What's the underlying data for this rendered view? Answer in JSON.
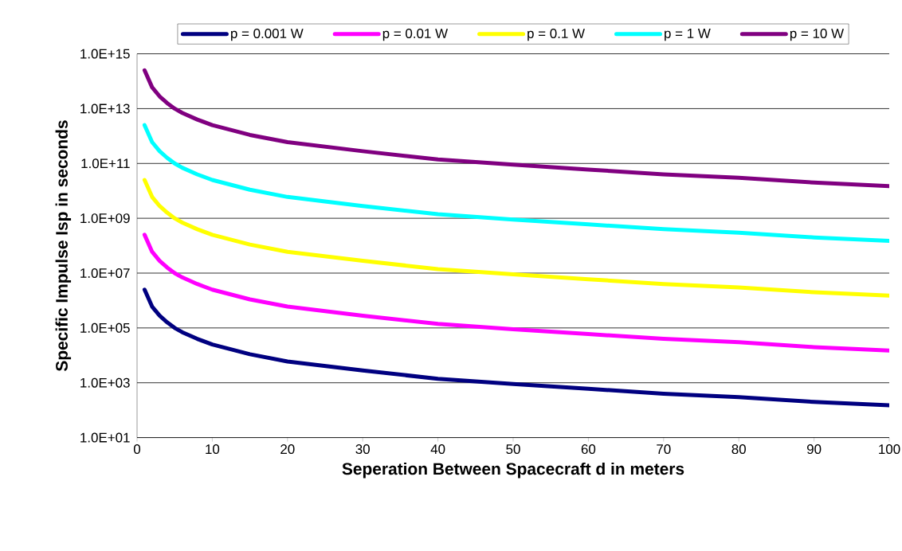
{
  "chart_data": {
    "type": "line",
    "xlabel": "Seperation Between Spacecraft d in meters",
    "ylabel": "Specific Impulse Isp in seconds",
    "x": [
      1,
      2,
      3,
      4,
      5,
      6,
      8,
      10,
      15,
      20,
      30,
      40,
      50,
      60,
      70,
      80,
      90,
      100
    ],
    "series": [
      {
        "name": "p = 0.001 W",
        "color": "#000080",
        "values": [
          2500000,
          600000,
          280000,
          160000,
          100000,
          70000,
          40000,
          25000,
          11000,
          6000,
          2800,
          1400,
          900,
          600,
          400,
          300,
          200,
          150
        ]
      },
      {
        "name": "p = 0.01 W",
        "color": "#ff00ff",
        "values": [
          250000000,
          60000000,
          28000000,
          16000000,
          10000000,
          7000000,
          4000000,
          2500000,
          1100000,
          600000,
          280000,
          140000,
          90000,
          60000,
          40000,
          30000,
          20000,
          15000
        ]
      },
      {
        "name": "p = 0.1 W",
        "color": "#ffff00",
        "values": [
          25000000000,
          6000000000,
          2800000000,
          1600000000,
          1000000000,
          700000000,
          400000000,
          250000000,
          110000000,
          60000000,
          28000000,
          14000000,
          9000000,
          6000000,
          4000000,
          3000000,
          2000000,
          1500000
        ]
      },
      {
        "name": "p = 1 W",
        "color": "#00ffff",
        "values": [
          2500000000000,
          600000000000,
          280000000000,
          160000000000,
          100000000000,
          70000000000,
          40000000000,
          25000000000,
          11000000000,
          6000000000,
          2800000000,
          1400000000,
          900000000,
          600000000,
          400000000,
          300000000,
          200000000,
          150000000
        ]
      },
      {
        "name": "p = 10 W",
        "color": "#800080",
        "values": [
          250000000000000,
          60000000000000,
          28000000000000,
          16000000000000,
          10000000000000,
          7000000000000,
          4000000000000,
          2500000000000,
          1100000000000,
          600000000000,
          280000000000,
          140000000000,
          90000000000,
          60000000000,
          40000000000,
          30000000000,
          20000000000,
          15000000000
        ]
      }
    ],
    "xlim": [
      0,
      100
    ],
    "xticks": [
      0,
      10,
      20,
      30,
      40,
      50,
      60,
      70,
      80,
      90,
      100
    ],
    "ylim": [
      10,
      1000000000000000
    ],
    "log": "y",
    "yticks": [
      {
        "value": 10,
        "label": "1.0E+01"
      },
      {
        "value": 1000,
        "label": "1.0E+03"
      },
      {
        "value": 100000,
        "label": "1.0E+05"
      },
      {
        "value": 10000000,
        "label": "1.0E+07"
      },
      {
        "value": 1000000000,
        "label": "1.0E+09"
      },
      {
        "value": 100000000000,
        "label": "1.0E+11"
      },
      {
        "value": 10000000000000,
        "label": "1.0E+13"
      },
      {
        "value": 1000000000000000,
        "label": "1.0E+15"
      }
    ],
    "grid": "y",
    "legend": "top",
    "marker": "none",
    "line_style": "solid"
  }
}
